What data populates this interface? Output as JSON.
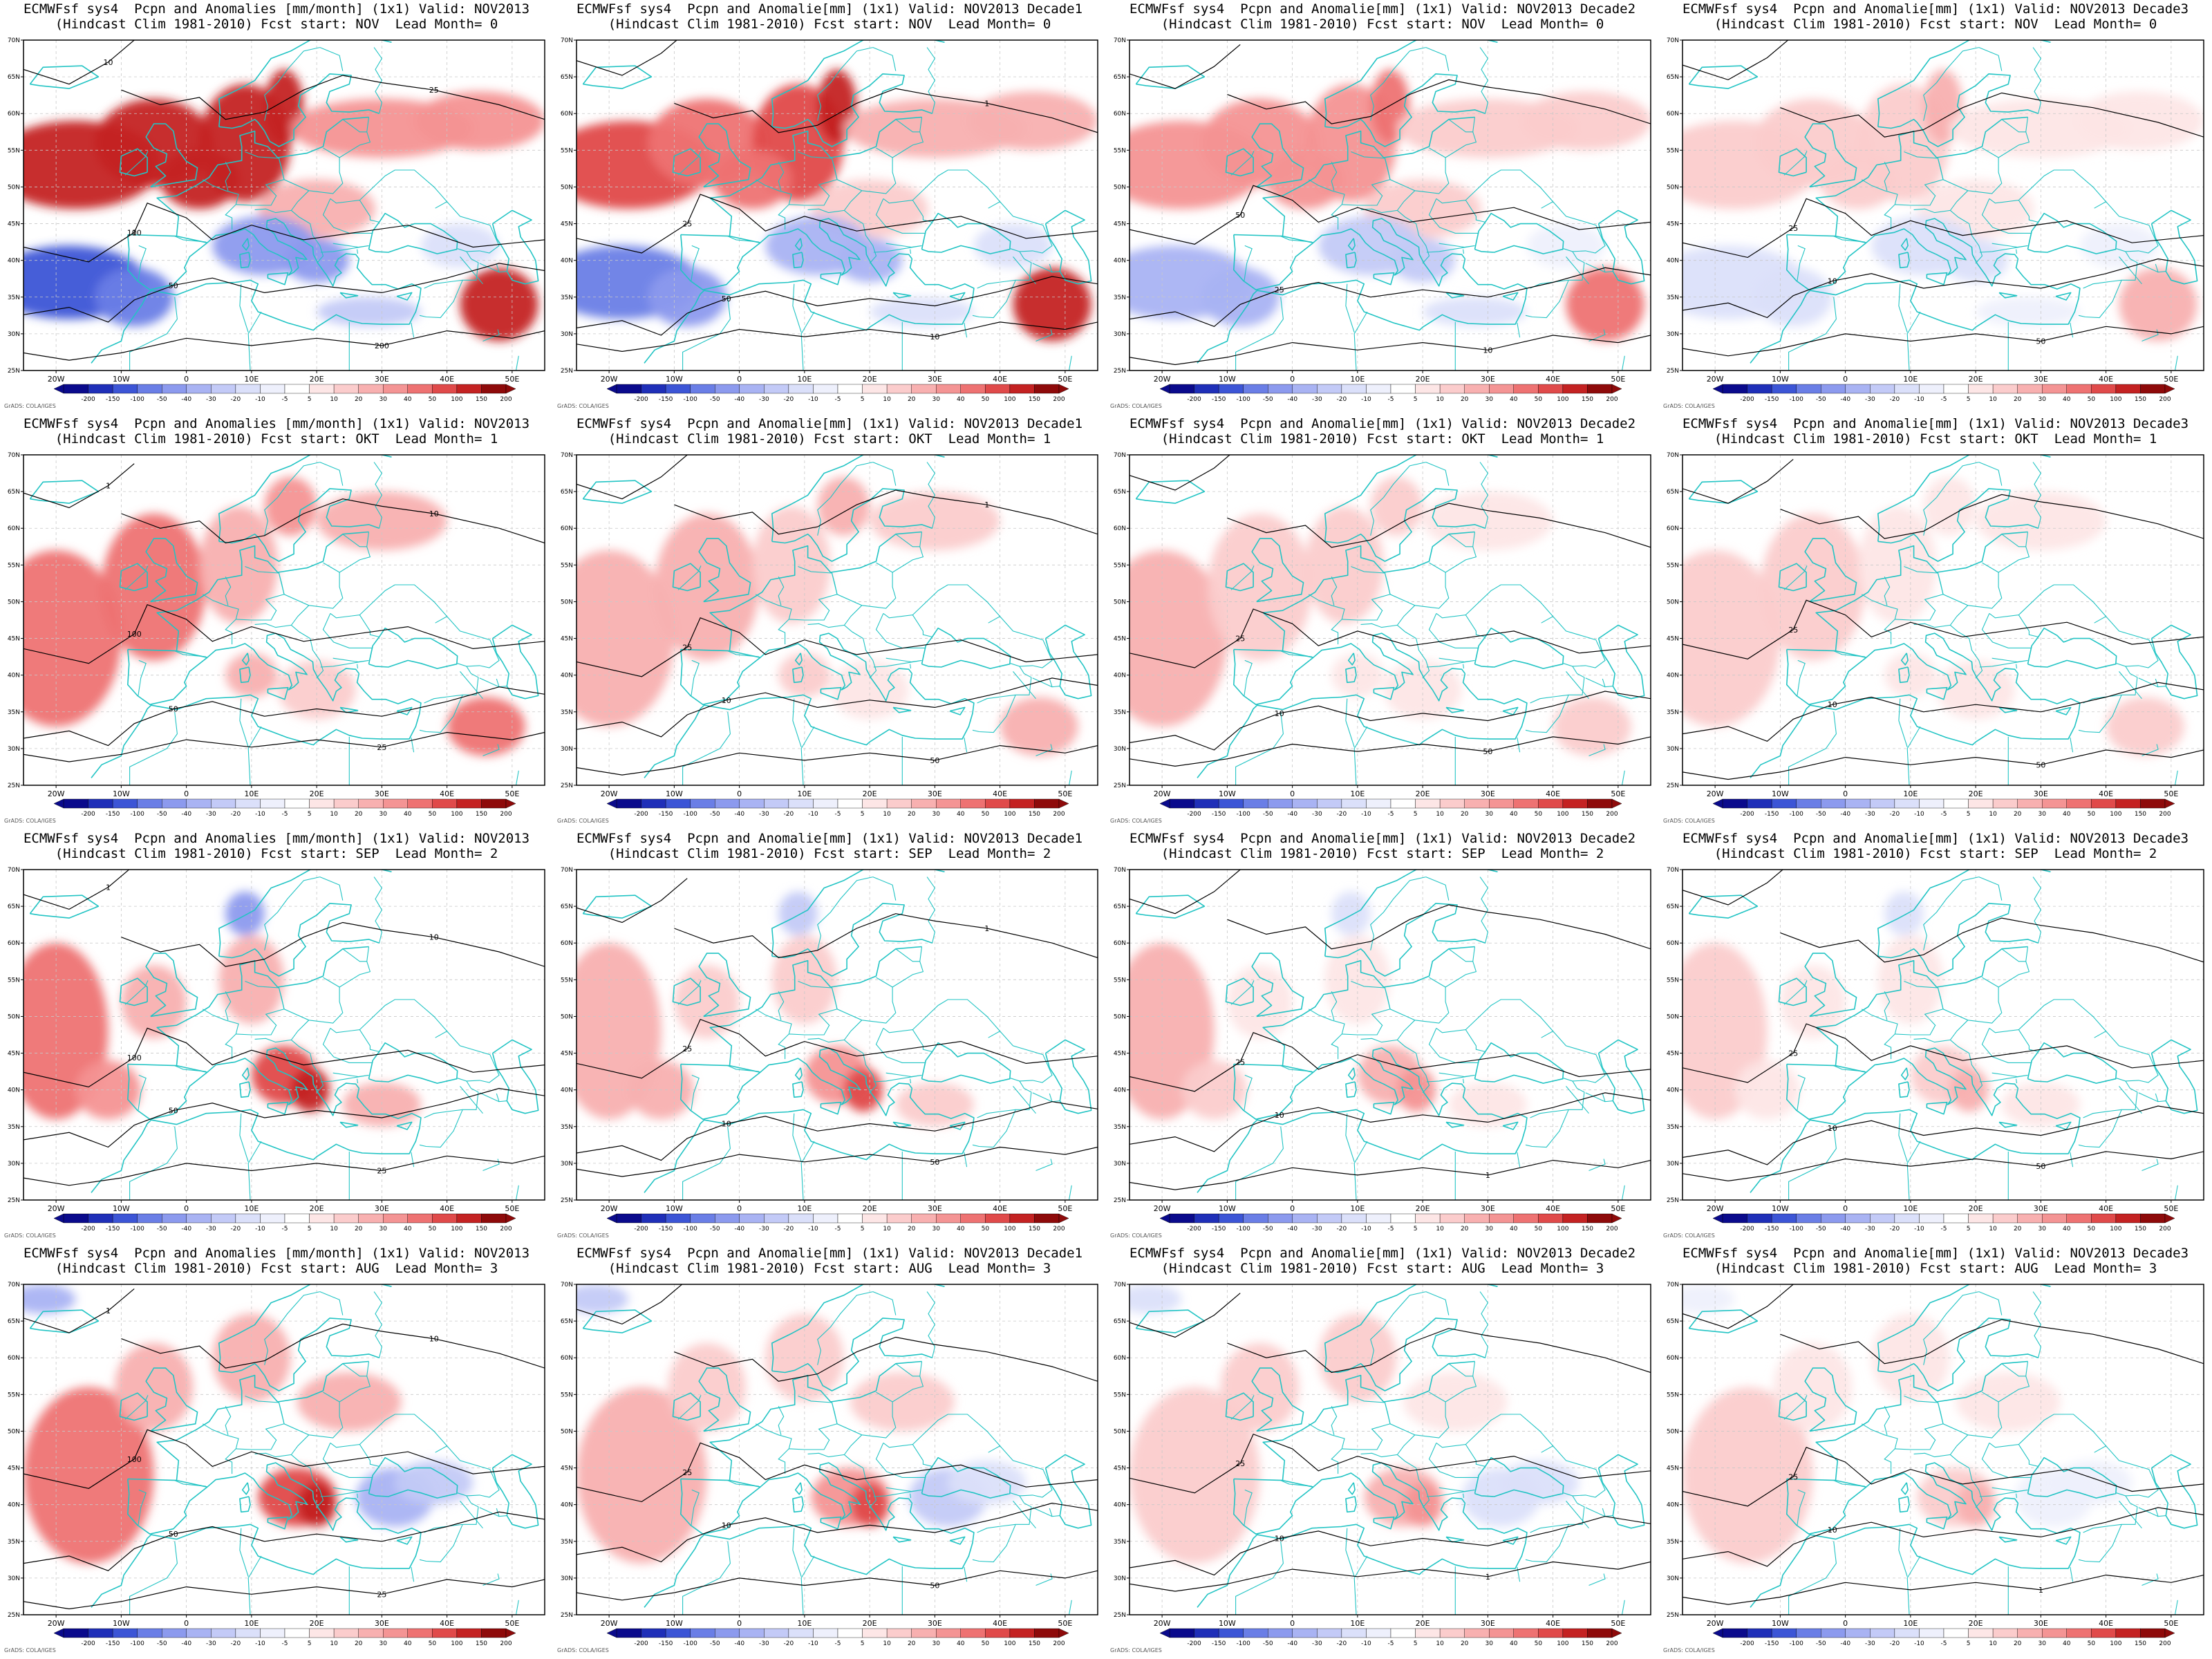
{
  "common": {
    "lat_ticks": [
      "25N",
      "30N",
      "35N",
      "40N",
      "45N",
      "50N",
      "55N",
      "60N",
      "65N",
      "70N"
    ],
    "lon_ticks": [
      "20W",
      "10W",
      "0",
      "10E",
      "20E",
      "30E",
      "40E",
      "50E"
    ],
    "legend_values": [
      "-200",
      "-150",
      "-100",
      "-50",
      "-40",
      "-30",
      "-20",
      "-10",
      "-5",
      "5",
      "10",
      "20",
      "30",
      "40",
      "50",
      "100",
      "150",
      "200"
    ],
    "legend_colors": [
      "#0a0a8c",
      "#1f2fb8",
      "#3c55d6",
      "#6a7ee6",
      "#8c9aee",
      "#a9b3f3",
      "#c3caf7",
      "#dbe0fa",
      "#eef0fc",
      "#ffffff",
      "#fde6e6",
      "#fbcccc",
      "#f8b0b0",
      "#f49494",
      "#ee7272",
      "#e04a4a",
      "#c42222",
      "#8e0a0a"
    ],
    "credit": "GrADS: COLA/IGES",
    "land_color": "#22c4c4",
    "contour_color": "#000000"
  },
  "panels": [
    {
      "line1": "ECMWFsf sys4  Pcpn and Anomalies [mm/month] (1x1) Valid: NOV2013",
      "line2": "(Hindcast Clim 1981-2010) Fcst start: NOV  Lead Month= 0",
      "intensity": 1.0,
      "labels": [
        "100",
        "50",
        "200",
        "25",
        "10",
        "1"
      ]
    },
    {
      "line1": "ECMWFsf sys4  Pcpn and Anomalie[mm] (1x1) Valid: NOV2013 Decade1",
      "line2": "(Hindcast Clim 1981-2010) Fcst start: NOV  Lead Month= 0",
      "intensity": 0.8,
      "labels": [
        "25",
        "50",
        "10",
        "1"
      ]
    },
    {
      "line1": "ECMWFsf sys4  Pcpn and Anomalie[mm] (1x1) Valid: NOV2013 Decade2",
      "line2": "(Hindcast Clim 1981-2010) Fcst start: NOV  Lead Month= 0",
      "intensity": 0.7,
      "labels": [
        "50",
        "25",
        "10"
      ]
    },
    {
      "line1": "ECMWFsf sys4  Pcpn and Anomalie[mm] (1x1) Valid: NOV2013 Decade3",
      "line2": "(Hindcast Clim 1981-2010) Fcst start: NOV  Lead Month= 0",
      "intensity": 0.35,
      "labels": [
        "25",
        "10",
        "50"
      ]
    },
    {
      "line1": "ECMWFsf sys4  Pcpn and Anomalies [mm/month] (1x1) Valid: NOV2013",
      "line2": "(Hindcast Clim 1981-2010) Fcst start: OKT  Lead Month= 1",
      "intensity": 0.6,
      "labels": [
        "100",
        "50",
        "25",
        "10",
        "1"
      ]
    },
    {
      "line1": "ECMWFsf sys4  Pcpn and Anomalie[mm] (1x1) Valid: NOV2013 Decade1",
      "line2": "(Hindcast Clim 1981-2010) Fcst start: OKT  Lead Month= 1",
      "intensity": 0.35,
      "labels": [
        "25",
        "10",
        "50",
        "1"
      ]
    },
    {
      "line1": "ECMWFsf sys4  Pcpn and Anomalie[mm] (1x1) Valid: NOV2013 Decade2",
      "line2": "(Hindcast Clim 1981-2010) Fcst start: OKT  Lead Month= 1",
      "intensity": 0.3,
      "labels": [
        "25",
        "10",
        "50"
      ]
    },
    {
      "line1": "ECMWFsf sys4  Pcpn and Anomalie[mm] (1x1) Valid: NOV2013 Decade3",
      "line2": "(Hindcast Clim 1981-2010) Fcst start: OKT  Lead Month= 1",
      "intensity": 0.3,
      "labels": [
        "25",
        "10",
        "50"
      ]
    },
    {
      "line1": "ECMWFsf sys4  Pcpn and Anomalies [mm/month] (1x1) Valid: NOV2013",
      "line2": "(Hindcast Clim 1981-2010) Fcst start: SEP  Lead Month= 2",
      "intensity": 0.6,
      "labels": [
        "100",
        "50",
        "25",
        "10",
        "1"
      ]
    },
    {
      "line1": "ECMWFsf sys4  Pcpn and Anomalie[mm] (1x1) Valid: NOV2013 Decade1",
      "line2": "(Hindcast Clim 1981-2010) Fcst start: SEP  Lead Month= 2",
      "intensity": 0.35,
      "labels": [
        "25",
        "10",
        "50",
        "1"
      ]
    },
    {
      "line1": "ECMWFsf sys4  Pcpn and Anomalie[mm] (1x1) Valid: NOV2013 Decade2",
      "line2": "(Hindcast Clim 1981-2010) Fcst start: SEP  Lead Month= 2",
      "intensity": 0.3,
      "labels": [
        "25",
        "10",
        "1"
      ]
    },
    {
      "line1": "ECMWFsf sys4  Pcpn and Anomalie[mm] (1x1) Valid: NOV2013 Decade3",
      "line2": "(Hindcast Clim 1981-2010) Fcst start: SEP  Lead Month= 2",
      "intensity": 0.35,
      "labels": [
        "25",
        "10",
        "50"
      ]
    },
    {
      "line1": "ECMWFsf sys4  Pcpn and Anomalies [mm/month] (1x1) Valid: NOV2013",
      "line2": "(Hindcast Clim 1981-2010) Fcst start: AUG  Lead Month= 3",
      "intensity": 0.6,
      "labels": [
        "100",
        "50",
        "25",
        "10",
        "1"
      ]
    },
    {
      "line1": "ECMWFsf sys4  Pcpn and Anomalie[mm] (1x1) Valid: NOV2013 Decade1",
      "line2": "(Hindcast Clim 1981-2010) Fcst start: AUG  Lead Month= 3",
      "intensity": 0.35,
      "labels": [
        "25",
        "10",
        "50"
      ]
    },
    {
      "line1": "ECMWFsf sys4  Pcpn and Anomalie[mm] (1x1) Valid: NOV2013 Decade2",
      "line2": "(Hindcast Clim 1981-2010) Fcst start: AUG  Lead Month= 3",
      "intensity": 0.3,
      "labels": [
        "25",
        "10",
        "1"
      ]
    },
    {
      "line1": "ECMWFsf sys4  Pcpn and Anomalie[mm] (1x1) Valid: NOV2013 Decade3",
      "line2": "(Hindcast Clim 1981-2010) Fcst start: AUG  Lead Month= 3",
      "intensity": 0.3,
      "labels": [
        "25",
        "10",
        "1"
      ]
    }
  ]
}
